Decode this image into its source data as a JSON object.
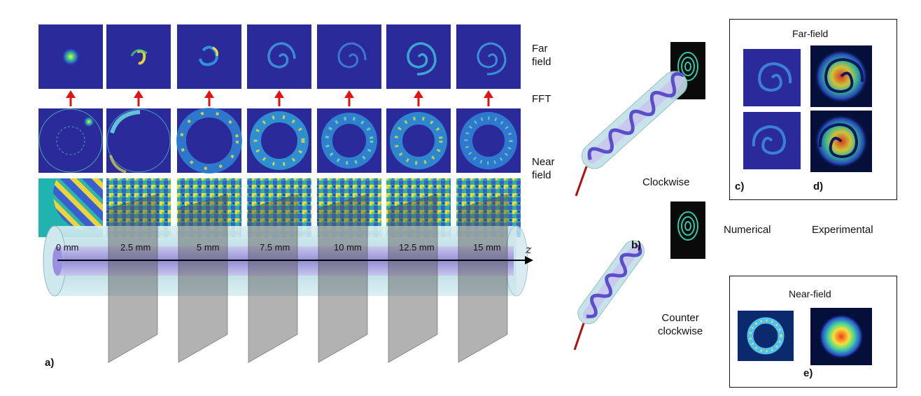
{
  "colors": {
    "background_blue": "#2b2a9a",
    "arrow_red": "#e01212",
    "phase_cyan": "#21b3b0",
    "phase_yellow": "#f0d23a",
    "fiber_glass": "#bfe0e6",
    "fiber_core": "#a89ee0",
    "helix_purple": "#5b4ec9"
  },
  "panel_a": {
    "label": "a)",
    "row_labels": {
      "far_field": [
        "Far",
        "field"
      ],
      "fft": "FFT",
      "near_field": [
        "Near",
        "field"
      ]
    },
    "distances": [
      "0 mm",
      "2.5 mm",
      "5 mm",
      "7.5 mm",
      "10 mm",
      "12.5 mm",
      "15 mm"
    ],
    "axis_label": "z"
  },
  "panel_b": {
    "label": "b)",
    "clockwise": "Clockwise",
    "counter_clockwise": [
      "Counter",
      "clockwise"
    ]
  },
  "panel_cd": {
    "title": "Far-field",
    "label_c": "c)",
    "label_d": "d)"
  },
  "column_labels": {
    "numerical": "Numerical",
    "experimental": "Experimental"
  },
  "panel_e": {
    "title": "Near-field",
    "label": "e)"
  }
}
